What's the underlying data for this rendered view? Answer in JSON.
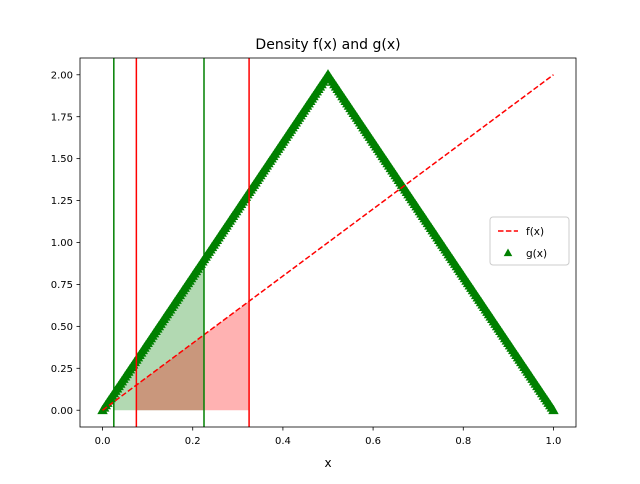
{
  "chart_data": {
    "type": "line",
    "title": "Density f(x) and g(x)",
    "xlabel": "x",
    "ylabel": "",
    "xlim": [
      -0.05,
      1.05
    ],
    "ylim": [
      -0.1,
      2.1
    ],
    "x_ticks": [
      0.0,
      0.2,
      0.4,
      0.6,
      0.8,
      1.0
    ],
    "x_tick_labels": [
      "0.0",
      "0.2",
      "0.4",
      "0.6",
      "0.8",
      "1.0"
    ],
    "y_ticks": [
      0.0,
      0.25,
      0.5,
      0.75,
      1.0,
      1.25,
      1.5,
      1.75,
      2.0
    ],
    "y_tick_labels": [
      "0.00",
      "0.25",
      "0.50",
      "0.75",
      "1.00",
      "1.25",
      "1.50",
      "1.75",
      "2.00"
    ],
    "grid": false,
    "legend_position": "center-right",
    "series": [
      {
        "name": "f(x)",
        "style": "dashed-line",
        "color": "#ff0000",
        "x": [
          0.0,
          1.0
        ],
        "y": [
          0.0,
          2.0
        ]
      },
      {
        "name": "g(x)",
        "style": "triangle-markers",
        "color": "#008000",
        "x": [
          0.0,
          0.5,
          1.0
        ],
        "y": [
          0.0,
          2.0,
          0.0
        ]
      }
    ],
    "vertical_lines": [
      {
        "x": 0.025,
        "color": "#008000"
      },
      {
        "x": 0.225,
        "color": "#008000"
      },
      {
        "x": 0.075,
        "color": "#ff0000"
      },
      {
        "x": 0.325,
        "color": "#ff0000"
      }
    ],
    "shaded_regions": [
      {
        "series": "g(x)",
        "x_from": 0.025,
        "x_to": 0.225,
        "color": "#008000",
        "opacity": 0.3
      },
      {
        "series": "f(x)",
        "x_from": 0.075,
        "x_to": 0.325,
        "color": "#ff0000",
        "opacity": 0.3
      }
    ]
  }
}
